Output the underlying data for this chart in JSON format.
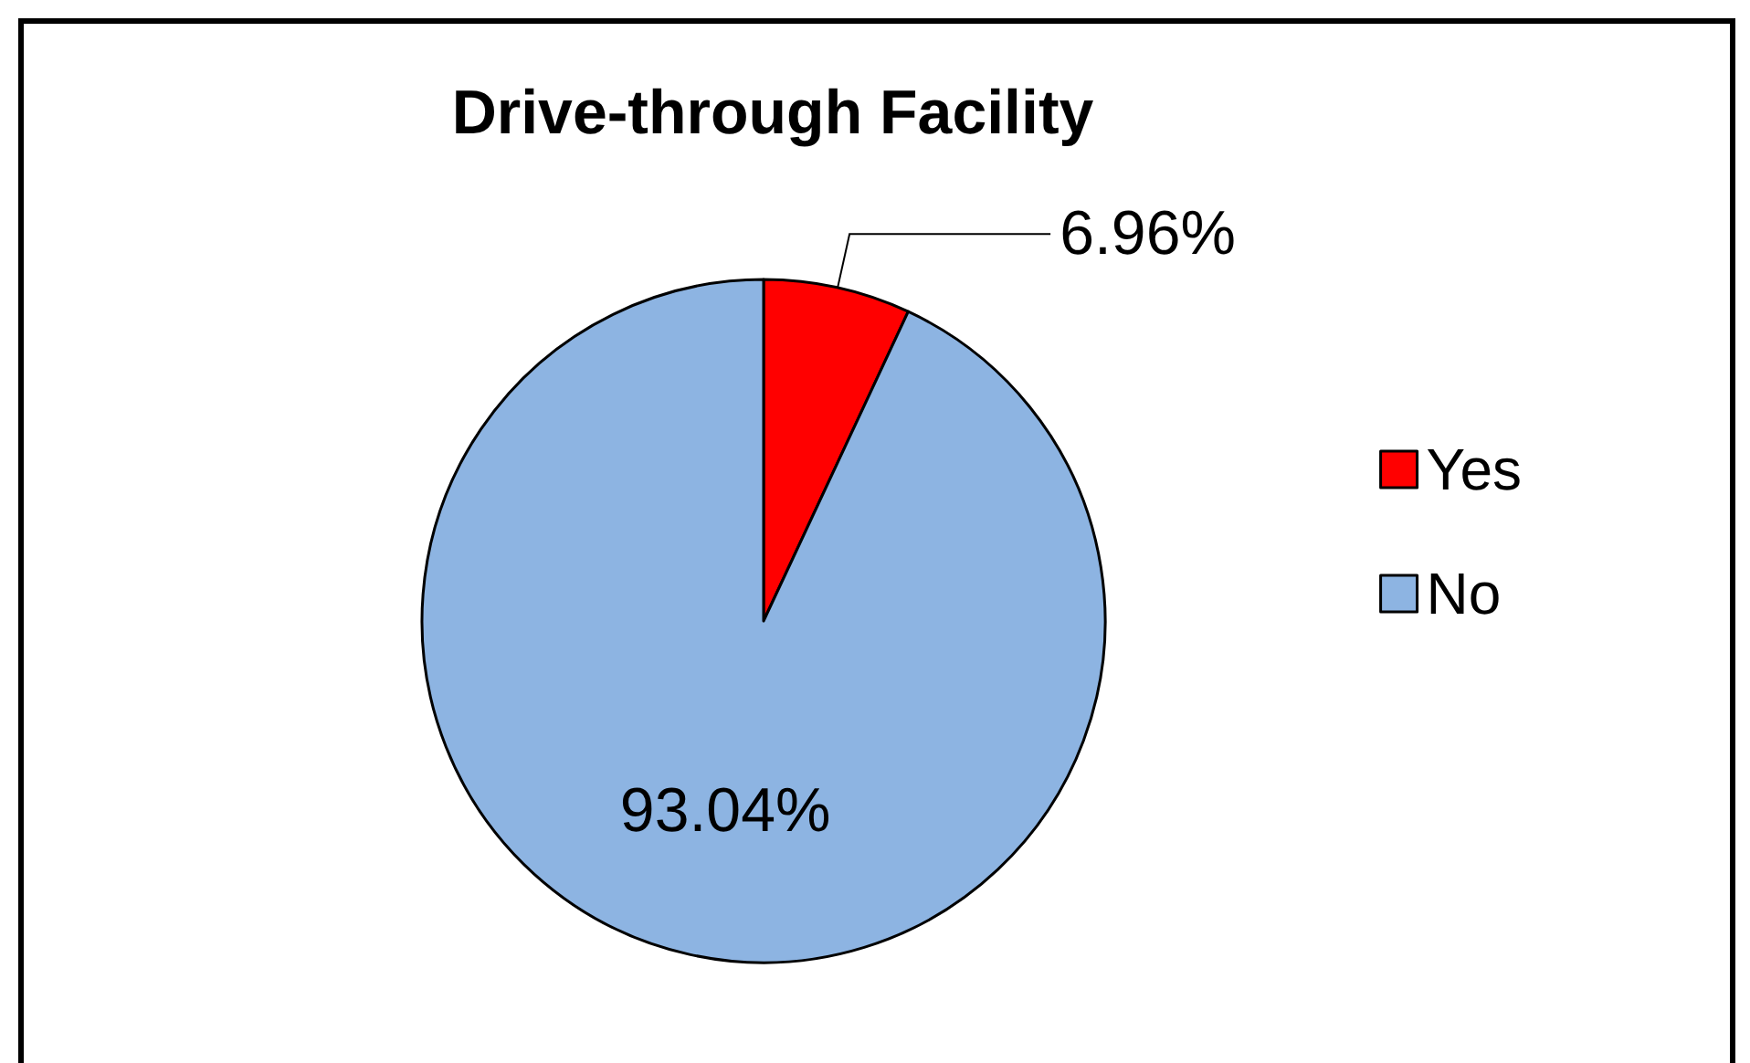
{
  "chart_data": {
    "type": "pie",
    "title": "Drive-through Facility",
    "categories": [
      "Yes",
      "No"
    ],
    "values": [
      6.96,
      93.04
    ],
    "colors": [
      "#ff0000",
      "#8db4e2"
    ],
    "value_labels": [
      "6.96%",
      "93.04%"
    ],
    "legend": "right"
  }
}
